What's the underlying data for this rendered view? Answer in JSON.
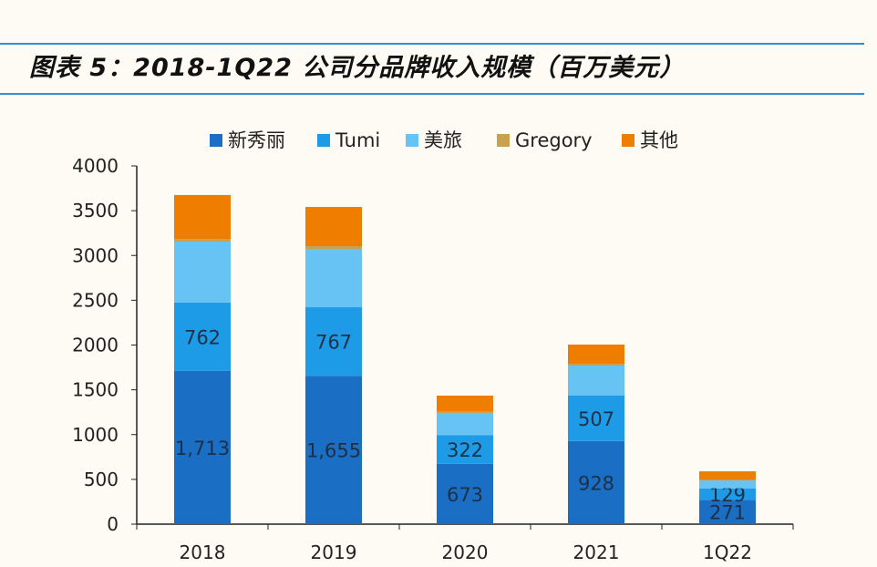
{
  "title": "图表 5：2018-1Q22 公司分品牌收入规模（百万美元）",
  "chart_data": {
    "type": "bar",
    "stacked": true,
    "title": "图表 5：2018-1Q22 公司分品牌收入规模（百万美元）",
    "categories": [
      "2018",
      "2019",
      "2020",
      "2021",
      "1Q22"
    ],
    "series": [
      {
        "name": "新秀丽",
        "color": "#1a6fc4",
        "values": [
          1713,
          1655,
          673,
          928,
          271
        ],
        "labels": [
          "1,713",
          "1,655",
          "673",
          "928",
          "271"
        ]
      },
      {
        "name": "Tumi",
        "color": "#1d9be6",
        "values": [
          762,
          767,
          322,
          507,
          129
        ],
        "labels": [
          "762",
          "767",
          "322",
          "507",
          "129"
        ]
      },
      {
        "name": "美旅",
        "color": "#66c3f4",
        "values": [
          680,
          652,
          247,
          336,
          89
        ]
      },
      {
        "name": "Gregory",
        "color": "#c8a050",
        "values": [
          30,
          30,
          20,
          20,
          5
        ]
      },
      {
        "name": "其他",
        "color": "#ee7d00",
        "values": [
          490,
          438,
          173,
          214,
          96
        ]
      }
    ],
    "ylim": [
      0,
      4000
    ],
    "yticks": [
      0,
      500,
      1000,
      1500,
      2000,
      2500,
      3000,
      3500,
      4000
    ],
    "legend": "top",
    "grid": false
  }
}
